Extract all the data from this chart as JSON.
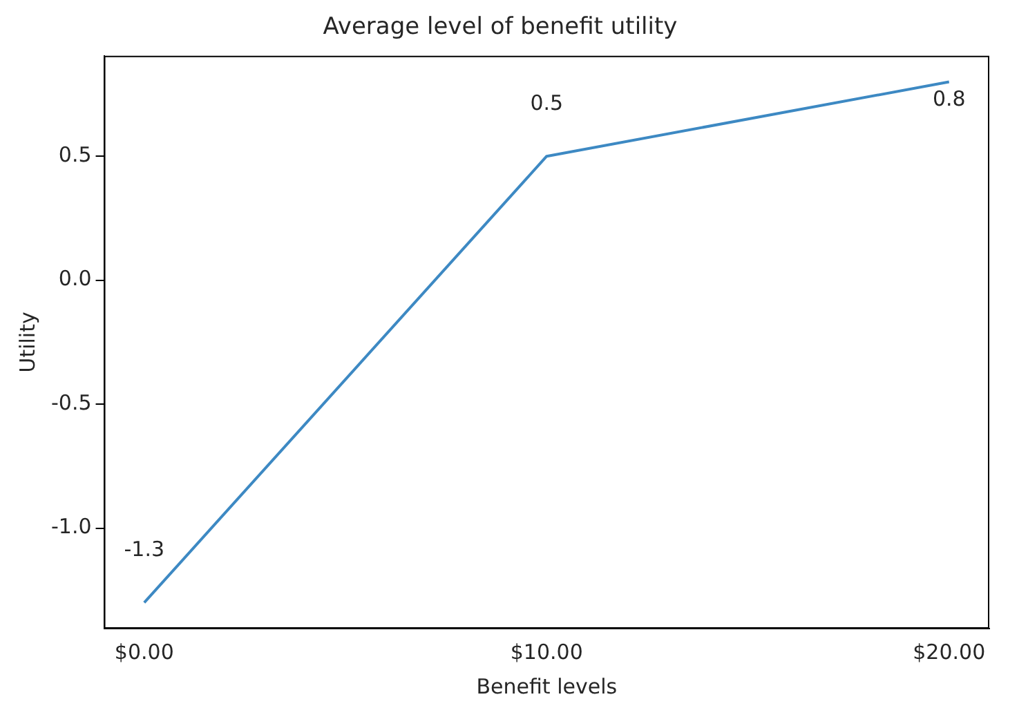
{
  "chart_data": {
    "type": "line",
    "title": "Average level of benefit utility",
    "xlabel": "Benefit levels",
    "ylabel": "Utility",
    "categories": [
      "$0.00",
      "$10.00",
      "$20.00"
    ],
    "series": [
      {
        "color": "#3d89c3",
        "values": [
          -1.3,
          0.5,
          0.8
        ]
      }
    ],
    "ylim": [
      -1.405,
      0.905
    ],
    "yticks": [
      {
        "value": -1,
        "label": "-1.0"
      },
      -0.5,
      {
        "value": 0,
        "label": "0.0"
      },
      0.5
    ],
    "data_labels": true,
    "grid": false,
    "legend": false,
    "marker": "none",
    "line_style": "solid"
  }
}
